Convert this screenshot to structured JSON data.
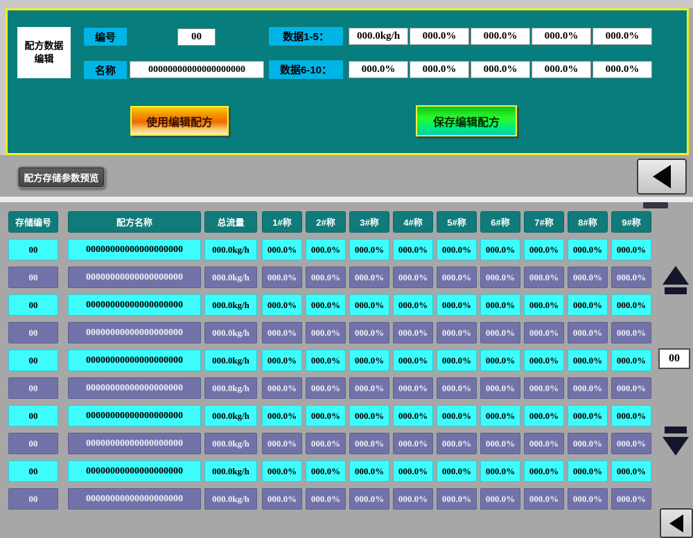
{
  "editor": {
    "title_line1": "配方数据",
    "title_line2": "编辑",
    "number_label": "编号",
    "number_value": "00",
    "name_label": "名称",
    "name_value": "00000000000000000000",
    "data_1_5_label": "数据1-5：",
    "data_6_10_label": "数据6-10：",
    "data_1_5_values": [
      "000.0kg/h",
      "000.0%",
      "000.0%",
      "000.0%",
      "000.0%"
    ],
    "data_6_10_values": [
      "000.0%",
      "000.0%",
      "000.0%",
      "000.0%",
      "000.0%"
    ],
    "use_button_label": "使用编辑配方",
    "save_button_label": "保存编辑配方"
  },
  "toolbar": {
    "preview_button_label": "配方存储参数预览"
  },
  "table": {
    "headers": [
      "存储编号",
      "配方名称",
      "总流量",
      "1#称",
      "2#称",
      "3#称",
      "4#称",
      "5#称",
      "6#称",
      "7#称",
      "8#称",
      "9#称"
    ],
    "rows": [
      [
        "00",
        "00000000000000000000",
        "000.0kg/h",
        "000.0%",
        "000.0%",
        "000.0%",
        "000.0%",
        "000.0%",
        "000.0%",
        "000.0%",
        "000.0%",
        "000.0%"
      ],
      [
        "00",
        "00000000000000000000",
        "000.0kg/h",
        "000.0%",
        "000.0%",
        "000.0%",
        "000.0%",
        "000.0%",
        "000.0%",
        "000.0%",
        "000.0%",
        "000.0%"
      ],
      [
        "00",
        "00000000000000000000",
        "000.0kg/h",
        "000.0%",
        "000.0%",
        "000.0%",
        "000.0%",
        "000.0%",
        "000.0%",
        "000.0%",
        "000.0%",
        "000.0%"
      ],
      [
        "00",
        "00000000000000000000",
        "000.0kg/h",
        "000.0%",
        "000.0%",
        "000.0%",
        "000.0%",
        "000.0%",
        "000.0%",
        "000.0%",
        "000.0%",
        "000.0%"
      ],
      [
        "00",
        "00000000000000000000",
        "000.0kg/h",
        "000.0%",
        "000.0%",
        "000.0%",
        "000.0%",
        "000.0%",
        "000.0%",
        "000.0%",
        "000.0%",
        "000.0%"
      ],
      [
        "00",
        "00000000000000000000",
        "000.0kg/h",
        "000.0%",
        "000.0%",
        "000.0%",
        "000.0%",
        "000.0%",
        "000.0%",
        "000.0%",
        "000.0%",
        "000.0%"
      ],
      [
        "00",
        "00000000000000000000",
        "000.0kg/h",
        "000.0%",
        "000.0%",
        "000.0%",
        "000.0%",
        "000.0%",
        "000.0%",
        "000.0%",
        "000.0%",
        "000.0%"
      ],
      [
        "00",
        "00000000000000000000",
        "000.0kg/h",
        "000.0%",
        "000.0%",
        "000.0%",
        "000.0%",
        "000.0%",
        "000.0%",
        "000.0%",
        "000.0%",
        "000.0%"
      ],
      [
        "00",
        "00000000000000000000",
        "000.0kg/h",
        "000.0%",
        "000.0%",
        "000.0%",
        "000.0%",
        "000.0%",
        "000.0%",
        "000.0%",
        "000.0%",
        "000.0%"
      ],
      [
        "00",
        "00000000000000000000",
        "000.0kg/h",
        "000.0%",
        "000.0%",
        "000.0%",
        "000.0%",
        "000.0%",
        "000.0%",
        "000.0%",
        "000.0%",
        "000.0%"
      ]
    ]
  },
  "scroll": {
    "page_value": "00"
  },
  "colors": {
    "panel_teal": "#087d7d",
    "panel_border_yellow": "#f4ef1c",
    "label_cyan": "#00b4e6",
    "use_button_orange": "#ed6d00",
    "save_button_green": "#2bfb2b",
    "header_teal": "#117a7a",
    "row_cyan": "#3efcfc",
    "row_purple": "#7173a8",
    "background_gray": "#a7a7a7"
  }
}
